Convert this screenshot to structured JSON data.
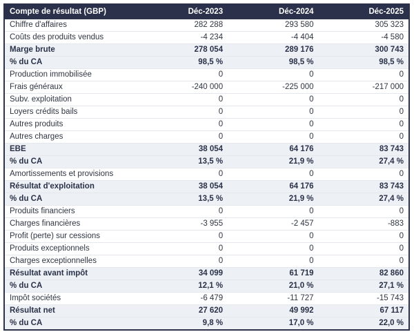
{
  "meta": {
    "title": "Compte de résultat (GBP)",
    "currency": "GBP"
  },
  "colors": {
    "header_bg": "#2c314b",
    "header_text": "#ffffff",
    "body_text": "#2f3542",
    "emphasis_row_bg": "#edf1f6",
    "row_divider": "#e4e7ec",
    "outer_border": "#2c314b"
  },
  "table": {
    "header": {
      "label": "Compte de résultat (GBP)",
      "columns": [
        "Déc-2023",
        "Déc-2024",
        "Déc-2025"
      ]
    },
    "rows": [
      {
        "label": "Chiffre d'affaires",
        "values": [
          "282 288",
          "293 580",
          "305 323"
        ],
        "emphasis": false
      },
      {
        "label": "Coûts des produits vendus",
        "values": [
          "-4 234",
          "-4 404",
          "-4 580"
        ],
        "emphasis": false
      },
      {
        "label": "Marge brute",
        "values": [
          "278 054",
          "289 176",
          "300 743"
        ],
        "emphasis": true
      },
      {
        "label": "% du CA",
        "values": [
          "98,5 %",
          "98,5 %",
          "98,5 %"
        ],
        "emphasis": true
      },
      {
        "label": "Production immobilisée",
        "values": [
          "0",
          "0",
          "0"
        ],
        "emphasis": false
      },
      {
        "label": "Frais généraux",
        "values": [
          "-240 000",
          "-225 000",
          "-217 000"
        ],
        "emphasis": false
      },
      {
        "label": "Subv. exploitation",
        "values": [
          "0",
          "0",
          "0"
        ],
        "emphasis": false
      },
      {
        "label": "Loyers crédits bails",
        "values": [
          "0",
          "0",
          "0"
        ],
        "emphasis": false
      },
      {
        "label": "Autres produits",
        "values": [
          "0",
          "0",
          "0"
        ],
        "emphasis": false
      },
      {
        "label": "Autres charges",
        "values": [
          "0",
          "0",
          "0"
        ],
        "emphasis": false
      },
      {
        "label": "EBE",
        "values": [
          "38 054",
          "64 176",
          "83 743"
        ],
        "emphasis": true
      },
      {
        "label": "% du CA",
        "values": [
          "13,5 %",
          "21,9 %",
          "27,4 %"
        ],
        "emphasis": true
      },
      {
        "label": "Amortissements et provisions",
        "values": [
          "0",
          "0",
          "0"
        ],
        "emphasis": false
      },
      {
        "label": "Résultat d'exploitation",
        "values": [
          "38 054",
          "64 176",
          "83 743"
        ],
        "emphasis": true
      },
      {
        "label": "% du CA",
        "values": [
          "13,5 %",
          "21,9 %",
          "27,4 %"
        ],
        "emphasis": true
      },
      {
        "label": "Produits financiers",
        "values": [
          "0",
          "0",
          "0"
        ],
        "emphasis": false
      },
      {
        "label": "Charges financières",
        "values": [
          "-3 955",
          "-2 457",
          "-883"
        ],
        "emphasis": false
      },
      {
        "label": "Profit (perte) sur cessions",
        "values": [
          "0",
          "0",
          "0"
        ],
        "emphasis": false
      },
      {
        "label": "Produits exceptionnels",
        "values": [
          "0",
          "0",
          "0"
        ],
        "emphasis": false
      },
      {
        "label": "Charges exceptionnelles",
        "values": [
          "0",
          "0",
          "0"
        ],
        "emphasis": false
      },
      {
        "label": "Résultat avant impôt",
        "values": [
          "34 099",
          "61 719",
          "82 860"
        ],
        "emphasis": true
      },
      {
        "label": "% du CA",
        "values": [
          "12,1 %",
          "21,0 %",
          "27,1 %"
        ],
        "emphasis": true
      },
      {
        "label": "Impôt sociétés",
        "values": [
          "-6 479",
          "-11 727",
          "-15 743"
        ],
        "emphasis": false
      },
      {
        "label": "Résultat net",
        "values": [
          "27 620",
          "49 992",
          "67 117"
        ],
        "emphasis": true
      },
      {
        "label": "% du CA",
        "values": [
          "9,8 %",
          "17,0 %",
          "22,0 %"
        ],
        "emphasis": true
      }
    ]
  }
}
